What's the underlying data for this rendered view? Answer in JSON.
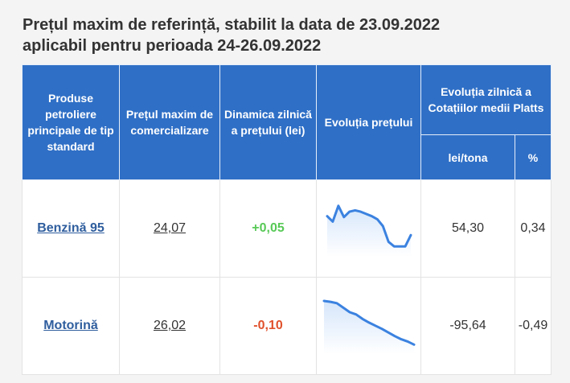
{
  "title": {
    "line1": "Prețul maxim de referință, stabilit la data de 23.09.2022",
    "line2": "aplicabil pentru perioada 24-26.09.2022"
  },
  "table": {
    "headers": {
      "product": "Produse petroliere principale de tip standard",
      "max_price": "Prețul maxim de comercializare",
      "daily_change": "Dinamica zilnică a prețului (lei)",
      "price_trend": "Evoluția prețului",
      "platts_group": "Evoluția zilnică a Cotațiilor medii Platts",
      "lei_tona": "lei/tona",
      "percent": "%"
    },
    "rows": [
      {
        "product": "Benzină 95",
        "max_price": "24,07",
        "daily_change": "+0,05",
        "platts_lei_tona": "54,30",
        "platts_percent": "0,34",
        "trend": [
          0.72,
          0.6,
          0.95,
          0.7,
          0.82,
          0.85,
          0.82,
          0.77,
          0.72,
          0.65,
          0.5,
          0.15,
          0.05,
          0.05,
          0.05,
          0.3
        ]
      },
      {
        "product": "Motorină",
        "max_price": "26,02",
        "daily_change": "-0,10",
        "platts_lei_tona": "-95,64",
        "platts_percent": "-0,49",
        "trend": [
          1.0,
          0.98,
          0.95,
          0.85,
          0.75,
          0.7,
          0.6,
          0.52,
          0.45,
          0.38,
          0.3,
          0.22,
          0.15,
          0.1,
          0.03
        ]
      }
    ]
  },
  "colors": {
    "header_bg": "#2f6fc6",
    "positive": "#58c957",
    "negative": "#e0512c",
    "spark_line": "#3b82e0",
    "spark_fill": "#d6e6fb"
  }
}
